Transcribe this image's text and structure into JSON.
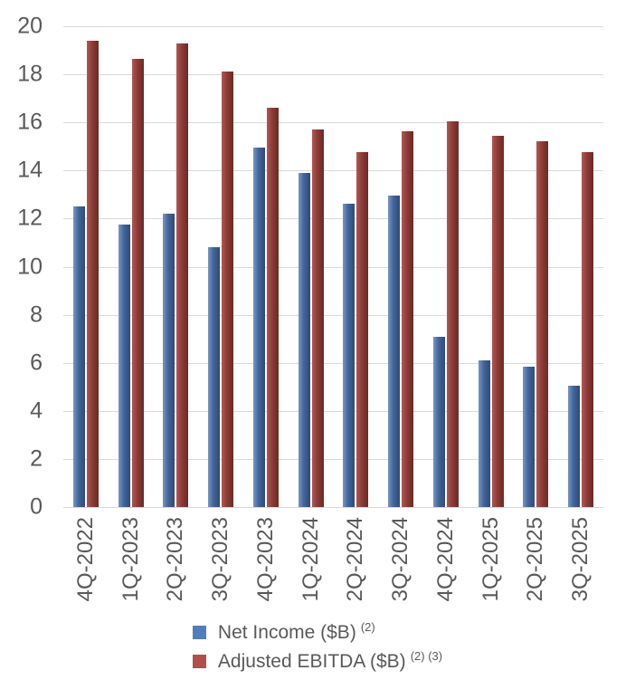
{
  "chart_data": {
    "type": "bar",
    "title": "",
    "categories": [
      "4Q-2022",
      "1Q-2023",
      "2Q-2023",
      "3Q-2023",
      "4Q-2023",
      "1Q-2024",
      "2Q-2024",
      "3Q-2024",
      "4Q-2024",
      "1Q-2025",
      "2Q-2025",
      "3Q-2025"
    ],
    "series": [
      {
        "name": "Net Income ($B)",
        "superscript": "(2)",
        "swatch_color": "#4F7FBA",
        "bar_gradient": [
          "#7A97BE",
          "#41659C",
          "#2E4B79"
        ],
        "values": [
          12.5,
          11.75,
          12.2,
          10.8,
          14.95,
          13.9,
          12.6,
          12.95,
          7.1,
          6.1,
          5.85,
          5.05
        ]
      },
      {
        "name": "Adjusted EBITDA ($B)",
        "superscript": "(2) (3)",
        "swatch_color": "#B14F4B",
        "bar_gradient": [
          "#AE5A54",
          "#8E3B37",
          "#692A26"
        ],
        "values": [
          19.4,
          18.65,
          19.3,
          18.1,
          16.6,
          15.7,
          14.75,
          15.65,
          16.05,
          15.45,
          15.2,
          14.75
        ]
      }
    ],
    "ylim": [
      0,
      20
    ],
    "yticks": [
      0,
      2,
      4,
      6,
      8,
      10,
      12,
      14,
      16,
      18,
      20
    ],
    "grid": true,
    "legend_position": "bottom",
    "axis_text_color": "#595959",
    "gridline_color": "#D9D9D9",
    "background": "#FFFFFF"
  }
}
